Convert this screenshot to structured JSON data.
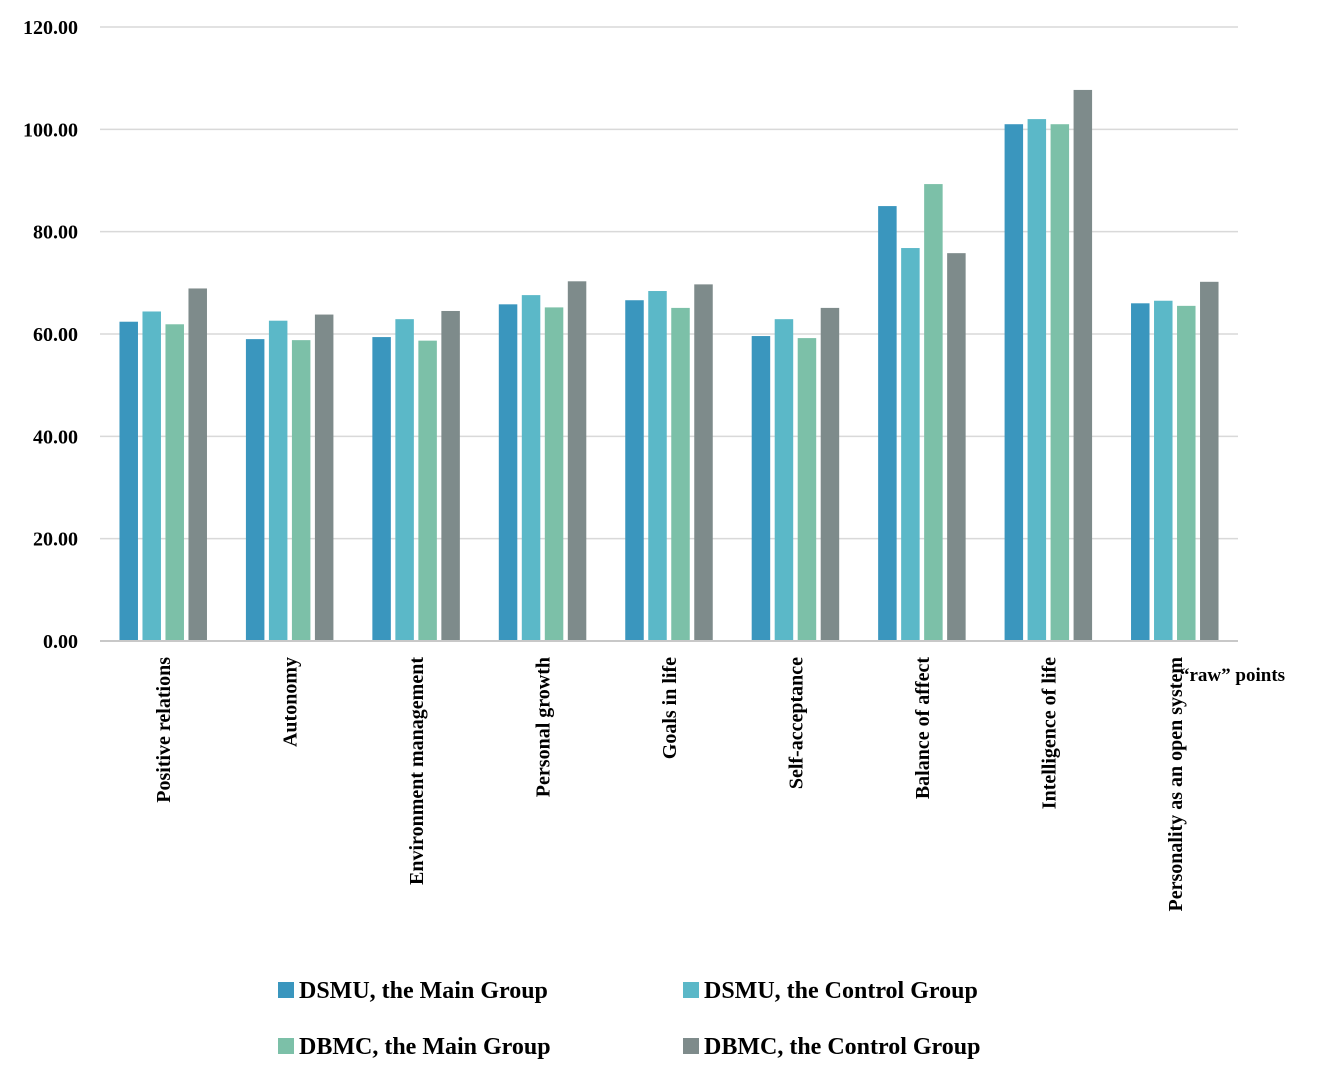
{
  "chart_data": {
    "type": "bar",
    "title": "",
    "xlabel": "",
    "ylabel": "",
    "unit_label": "“raw” points",
    "ylim": [
      0,
      120
    ],
    "yticks": [
      0,
      20,
      40,
      60,
      80,
      100,
      120
    ],
    "ytick_labels": [
      "0.00",
      "20.00",
      "40.00",
      "60.00",
      "80.00",
      "100.00",
      "120.00"
    ],
    "grid": true,
    "legend_position": "bottom",
    "categories": [
      "Positive relations",
      "Autonomy",
      "Environment management",
      "Personal growth",
      "Goals in life",
      "Self-acceptance",
      "Balance of affect",
      "Intelligence of life",
      "Personality as an open system"
    ],
    "series": [
      {
        "name": "DSMU, the Main Group",
        "color": "#3a96be",
        "values": [
          62.4,
          59.0,
          59.4,
          65.8,
          66.6,
          59.6,
          85.0,
          101.0,
          66.0
        ]
      },
      {
        "name": "DSMU, the Control Group",
        "color": "#5bb8c8",
        "values": [
          64.4,
          62.6,
          62.9,
          67.6,
          68.4,
          62.9,
          76.8,
          102.0,
          66.5
        ]
      },
      {
        "name": "DBMC, the Main Group",
        "color": "#7cc0a8",
        "values": [
          61.9,
          58.8,
          58.7,
          65.2,
          65.1,
          59.2,
          89.3,
          101.0,
          65.5
        ]
      },
      {
        "name": "DBMC, the Control Group",
        "color": "#7e8b8b",
        "values": [
          68.9,
          63.8,
          64.5,
          70.3,
          69.7,
          65.1,
          75.8,
          107.7,
          70.2
        ]
      }
    ]
  }
}
